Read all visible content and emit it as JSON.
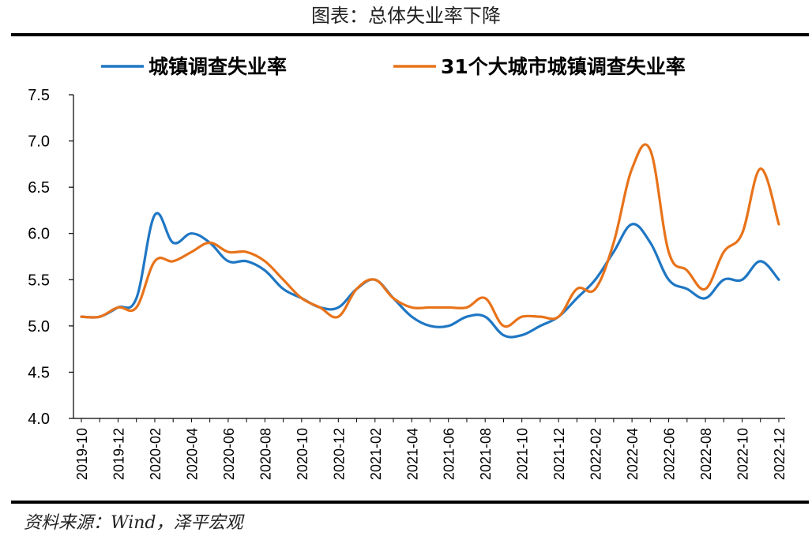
{
  "header": {
    "title": "图表：总体失业率下降"
  },
  "footer": {
    "source": "资料来源：Wind，泽平宏观"
  },
  "colors": {
    "series1": "#1F77C4",
    "series2": "#E8731A",
    "axis": "#000000",
    "text": "#000000"
  },
  "chart_data": {
    "type": "line",
    "title": "",
    "xlabel": "",
    "ylabel": "",
    "ylim": [
      4.0,
      7.5
    ],
    "yticks": [
      "4.0",
      "4.5",
      "5.0",
      "5.5",
      "6.0",
      "6.5",
      "7.0",
      "7.5"
    ],
    "grid": false,
    "legend_position": "top",
    "x": [
      "2019-10",
      "2019-11",
      "2019-12",
      "2020-01",
      "2020-02",
      "2020-03",
      "2020-04",
      "2020-05",
      "2020-06",
      "2020-07",
      "2020-08",
      "2020-09",
      "2020-10",
      "2020-11",
      "2020-12",
      "2021-01",
      "2021-02",
      "2021-03",
      "2021-04",
      "2021-05",
      "2021-06",
      "2021-07",
      "2021-08",
      "2021-09",
      "2021-10",
      "2021-11",
      "2021-12",
      "2022-01",
      "2022-02",
      "2022-03",
      "2022-04",
      "2022-05",
      "2022-06",
      "2022-07",
      "2022-08",
      "2022-09",
      "2022-10",
      "2022-11",
      "2022-12"
    ],
    "xtick_labels": [
      "2019-10",
      "2019-12",
      "2020-02",
      "2020-04",
      "2020-06",
      "2020-08",
      "2020-10",
      "2020-12",
      "2021-02",
      "2021-04",
      "2021-06",
      "2021-08",
      "2021-10",
      "2021-12",
      "2022-02",
      "2022-04",
      "2022-06",
      "2022-08",
      "2022-10",
      "2022-12"
    ],
    "series": [
      {
        "name": "城镇调查失业率",
        "values": [
          5.1,
          5.1,
          5.2,
          5.3,
          6.2,
          5.9,
          6.0,
          5.9,
          5.7,
          5.7,
          5.6,
          5.4,
          5.3,
          5.2,
          5.2,
          5.4,
          5.5,
          5.3,
          5.1,
          5.0,
          5.0,
          5.1,
          5.1,
          4.9,
          4.9,
          5.0,
          5.1,
          5.3,
          5.5,
          5.8,
          6.1,
          5.9,
          5.5,
          5.4,
          5.3,
          5.5,
          5.5,
          5.7,
          5.5
        ]
      },
      {
        "name": "31个大城市城镇调查失业率",
        "values": [
          5.1,
          5.1,
          5.2,
          5.2,
          5.7,
          5.7,
          5.8,
          5.9,
          5.8,
          5.8,
          5.7,
          5.5,
          5.3,
          5.2,
          5.1,
          5.4,
          5.5,
          5.3,
          5.2,
          5.2,
          5.2,
          5.2,
          5.3,
          5.0,
          5.1,
          5.1,
          5.1,
          5.4,
          5.4,
          5.9,
          6.7,
          6.9,
          5.8,
          5.6,
          5.4,
          5.8,
          6.0,
          6.7,
          6.1
        ]
      }
    ]
  }
}
